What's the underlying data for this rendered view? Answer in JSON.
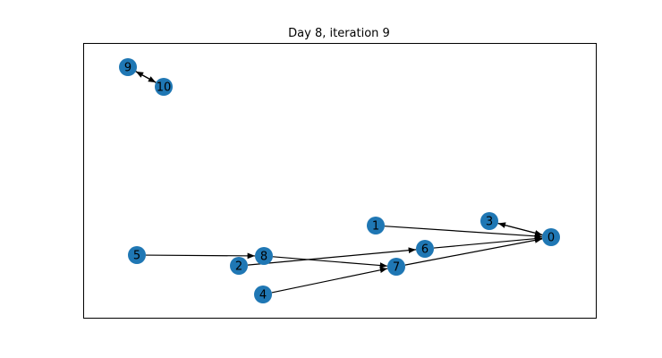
{
  "title": "Day 8, iteration 9",
  "colors": {
    "node_fill": "#1f77b4",
    "edge": "#000000",
    "frame": "#000000",
    "background": "#ffffff"
  },
  "graph": {
    "nodes": [
      "0",
      "1",
      "2",
      "3",
      "4",
      "5",
      "6",
      "7",
      "8",
      "9",
      "10"
    ],
    "edges": [
      {
        "from": "1",
        "to": "0"
      },
      {
        "from": "0",
        "to": "3"
      },
      {
        "from": "3",
        "to": "0"
      },
      {
        "from": "6",
        "to": "0"
      },
      {
        "from": "7",
        "to": "0"
      },
      {
        "from": "2",
        "to": "6"
      },
      {
        "from": "8",
        "to": "7"
      },
      {
        "from": "4",
        "to": "7"
      },
      {
        "from": "5",
        "to": "8"
      },
      {
        "from": "9",
        "to": "10"
      },
      {
        "from": "10",
        "to": "9"
      }
    ]
  }
}
